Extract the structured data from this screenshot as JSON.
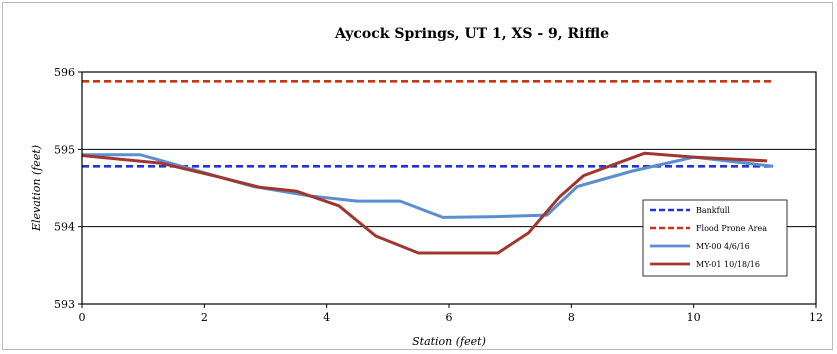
{
  "chart_data": {
    "type": "line",
    "title": "Aycock Springs, UT 1, XS - 9, Riffle",
    "xlabel": "Station (feet)",
    "ylabel": "Elevation (feet)",
    "xlim": [
      0,
      12
    ],
    "ylim": [
      593,
      596
    ],
    "xticks": [
      "0",
      "2",
      "4",
      "6",
      "8",
      "10",
      "12"
    ],
    "yticks": [
      "593",
      "594",
      "595",
      "596"
    ],
    "grid": "horizontal",
    "legend_position": "right",
    "series": [
      {
        "name": "Bankfull",
        "color": "#2233dd",
        "style": "dashed",
        "x": [
          0,
          11.3
        ],
        "y": [
          594.78,
          594.78
        ]
      },
      {
        "name": "Flood Prone Area",
        "color": "#cc3311",
        "style": "dashed",
        "x": [
          0,
          11.3
        ],
        "y": [
          595.88,
          595.88
        ]
      },
      {
        "name": "MY-00 4/6/16",
        "color": "#5b8ecf",
        "style": "solid",
        "x": [
          0,
          0.95,
          1.9,
          2.8,
          3.7,
          4.5,
          5.2,
          5.9,
          6.8,
          7.6,
          8.1,
          9.0,
          10.0,
          11.3
        ],
        "y": [
          594.93,
          594.93,
          594.72,
          594.52,
          594.4,
          594.33,
          594.33,
          594.12,
          594.13,
          594.15,
          594.52,
          594.72,
          594.9,
          594.78
        ]
      },
      {
        "name": "MY-01 10/18/16",
        "color": "#a0372f",
        "style": "solid",
        "x": [
          0,
          1.3,
          2.2,
          2.9,
          3.5,
          4.2,
          4.8,
          5.5,
          6.2,
          6.8,
          7.3,
          7.8,
          8.2,
          9.2,
          10.0,
          11.2
        ],
        "y": [
          594.92,
          594.82,
          594.65,
          594.51,
          594.46,
          594.27,
          593.88,
          593.66,
          593.66,
          593.66,
          593.92,
          594.38,
          594.66,
          594.95,
          594.9,
          594.85
        ]
      }
    ]
  }
}
